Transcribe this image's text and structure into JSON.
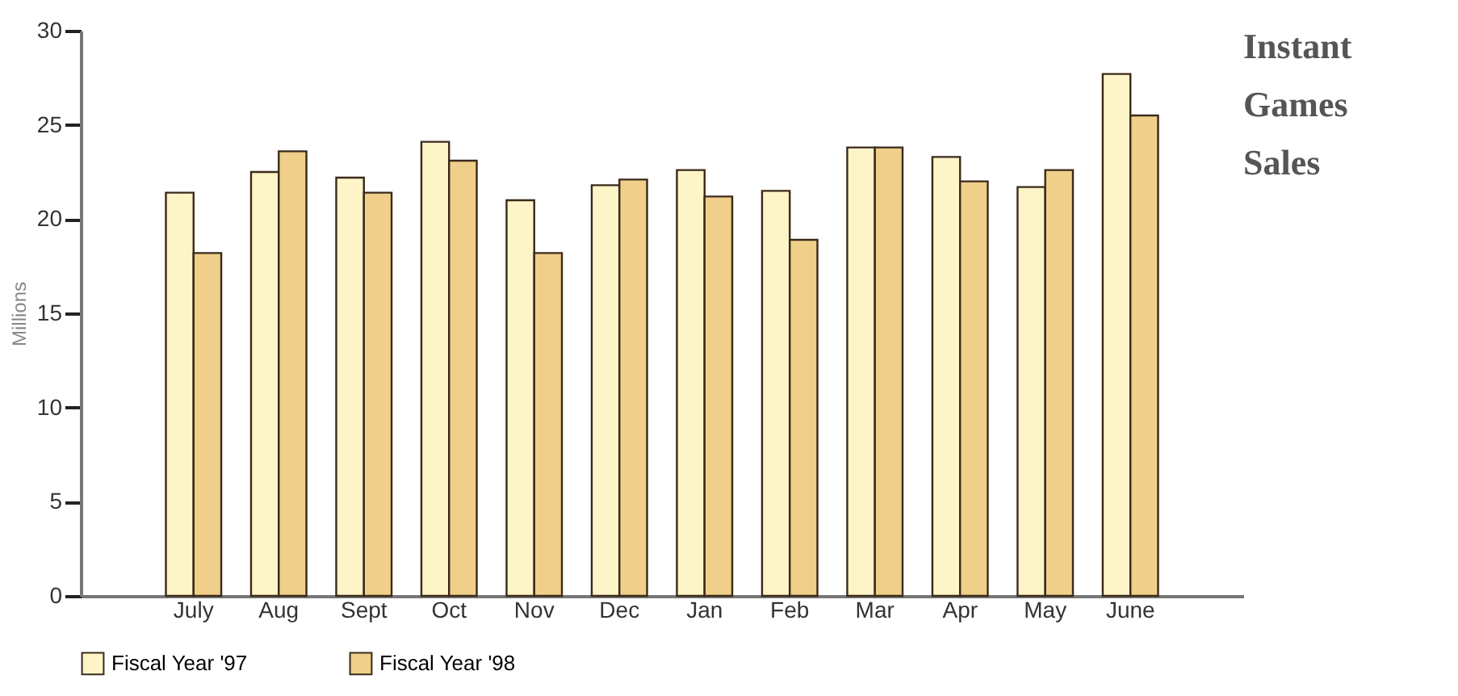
{
  "chart_data": {
    "type": "bar",
    "title": "Instant Games Sales",
    "ylabel": "Millions",
    "categories": [
      "July",
      "Aug",
      "Sept",
      "Oct",
      "Nov",
      "Dec",
      "Jan",
      "Feb",
      "Mar",
      "Apr",
      "May",
      "June"
    ],
    "series": [
      {
        "name": "Fiscal Year '97",
        "color": "#fdf5c8",
        "values": [
          21.4,
          22.5,
          22.2,
          24.1,
          21.0,
          21.8,
          22.6,
          21.5,
          23.8,
          23.3,
          21.7,
          27.7
        ]
      },
      {
        "name": "Fiscal Year '98",
        "color": "#efcf8a",
        "values": [
          18.2,
          23.6,
          21.4,
          23.1,
          18.2,
          22.1,
          21.2,
          18.9,
          23.8,
          22.0,
          22.6,
          25.5
        ]
      }
    ],
    "ylim": [
      0,
      30
    ],
    "yticks": [
      0,
      5,
      10,
      15,
      20,
      25,
      30
    ],
    "grid": false,
    "legend": "bottom"
  }
}
